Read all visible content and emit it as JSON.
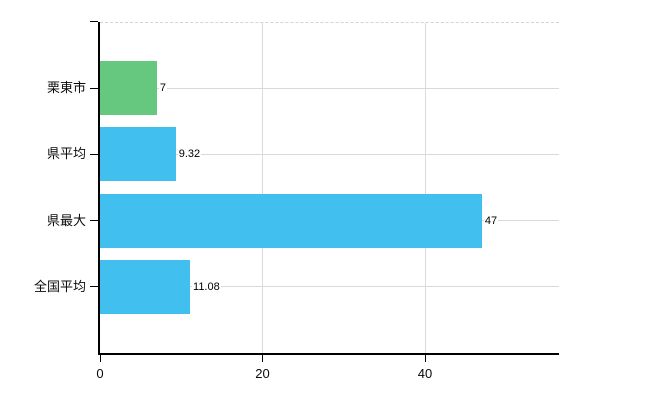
{
  "chart_data": {
    "type": "bar",
    "orientation": "horizontal",
    "title": "",
    "xlabel": "",
    "ylabel": "",
    "grid": true,
    "categories": [
      "栗東市",
      "県平均",
      "県最大",
      "全国平均"
    ],
    "values": [
      7,
      9.32,
      47,
      11.08
    ],
    "value_labels": [
      "7",
      "9.32",
      "47",
      "11.08"
    ],
    "bar_colors": [
      "#66c87e",
      "#41bfef",
      "#41bfef",
      "#41bfef"
    ],
    "x_ticks": [
      0,
      20,
      40
    ],
    "x_tick_labels": [
      "0",
      "20",
      "40"
    ],
    "xlim": [
      0,
      56.5
    ],
    "colors": {
      "bar_green": "#66c87e",
      "bar_blue": "#41bfef",
      "gridline": "#d9d9d9",
      "axis": "#000000",
      "text": "#000000",
      "background": "#ffffff"
    }
  }
}
